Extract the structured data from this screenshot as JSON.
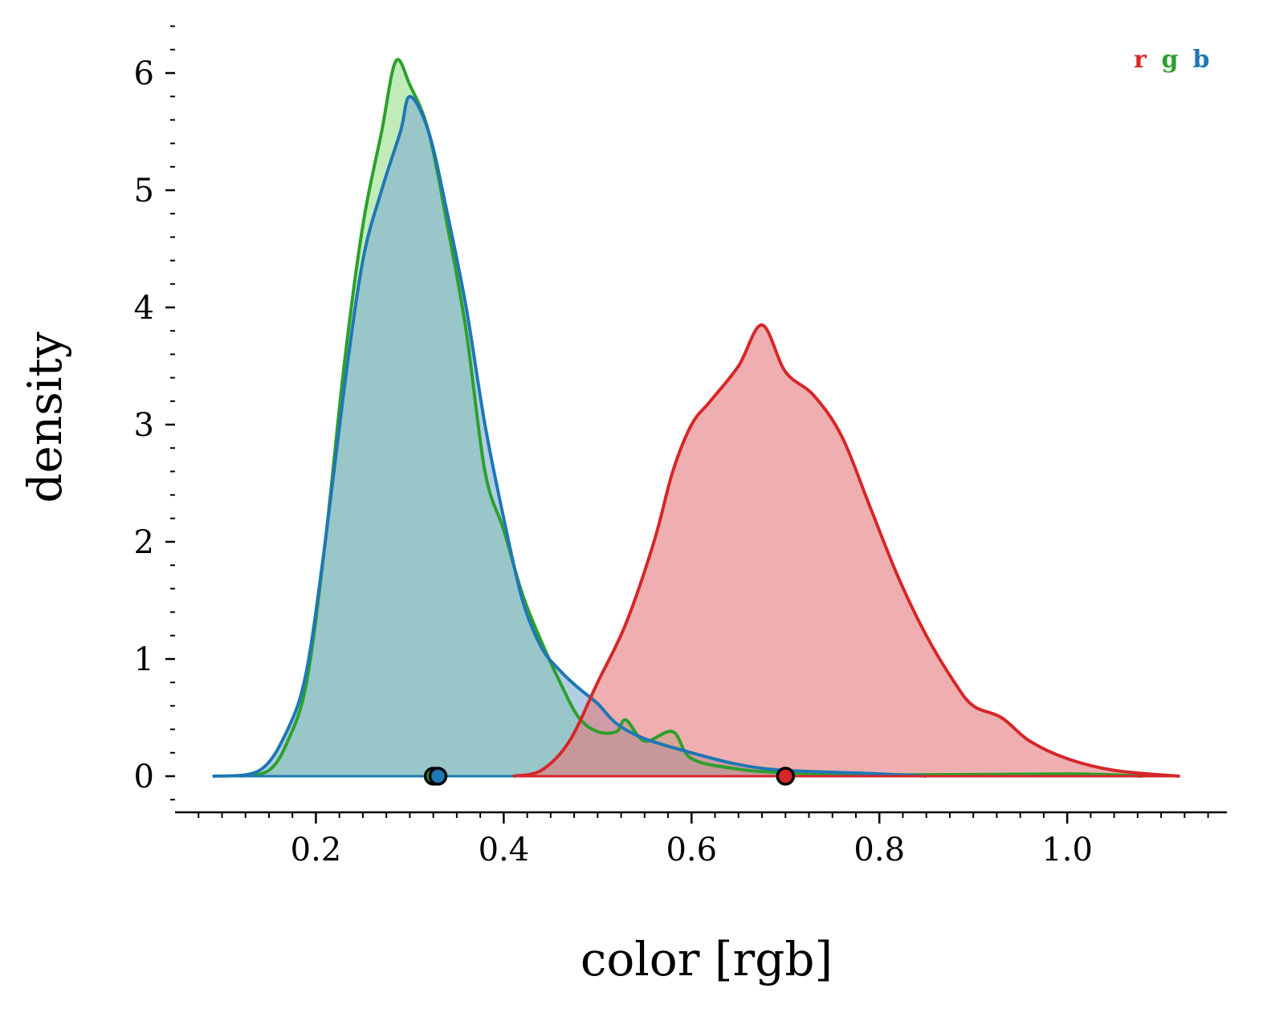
{
  "chart_data": {
    "type": "area",
    "xlabel": "color [rgb]",
    "ylabel": "density",
    "xlim": [
      0.05,
      1.17
    ],
    "ylim": [
      -0.3,
      6.4
    ],
    "x_ticks": [
      0.2,
      0.4,
      0.6,
      0.8,
      1.0
    ],
    "x_tick_labels": [
      "0.2",
      "0.4",
      "0.6",
      "0.8",
      "1.0"
    ],
    "y_ticks": [
      0,
      1,
      2,
      3,
      4,
      5,
      6
    ],
    "y_tick_labels": [
      "0",
      "1",
      "2",
      "3",
      "4",
      "5",
      "6"
    ],
    "x_minor_step": 0.025,
    "y_minor_step": 0.2,
    "grid": false,
    "legend_position": "top-right",
    "colors": {
      "r": "#d62728",
      "g": "#2ca02c",
      "b": "#1f77b4"
    },
    "series": [
      {
        "name": "g",
        "color": "#2ca02c",
        "fill": "#98df8a",
        "marker_x": 0.325,
        "points": [
          [
            0.12,
            0
          ],
          [
            0.15,
            0.05
          ],
          [
            0.17,
            0.3
          ],
          [
            0.19,
            0.8
          ],
          [
            0.21,
            2.0
          ],
          [
            0.23,
            3.5
          ],
          [
            0.25,
            4.7
          ],
          [
            0.27,
            5.5
          ],
          [
            0.285,
            6.1
          ],
          [
            0.3,
            5.9
          ],
          [
            0.32,
            5.5
          ],
          [
            0.34,
            4.7
          ],
          [
            0.36,
            3.8
          ],
          [
            0.38,
            2.6
          ],
          [
            0.4,
            2.1
          ],
          [
            0.42,
            1.55
          ],
          [
            0.44,
            1.15
          ],
          [
            0.46,
            0.8
          ],
          [
            0.48,
            0.5
          ],
          [
            0.5,
            0.38
          ],
          [
            0.52,
            0.38
          ],
          [
            0.53,
            0.48
          ],
          [
            0.55,
            0.3
          ],
          [
            0.58,
            0.38
          ],
          [
            0.6,
            0.15
          ],
          [
            0.65,
            0.06
          ],
          [
            0.7,
            0.03
          ],
          [
            0.8,
            0.01
          ],
          [
            1.0,
            0.02
          ],
          [
            1.08,
            0
          ]
        ]
      },
      {
        "name": "b",
        "color": "#1f77b4",
        "fill": "#7eaed4",
        "marker_x": 0.33,
        "points": [
          [
            0.09,
            0
          ],
          [
            0.14,
            0.05
          ],
          [
            0.17,
            0.4
          ],
          [
            0.19,
            0.9
          ],
          [
            0.21,
            2.0
          ],
          [
            0.23,
            3.3
          ],
          [
            0.25,
            4.4
          ],
          [
            0.27,
            5.0
          ],
          [
            0.29,
            5.5
          ],
          [
            0.3,
            5.8
          ],
          [
            0.32,
            5.5
          ],
          [
            0.34,
            4.8
          ],
          [
            0.36,
            4.0
          ],
          [
            0.38,
            3.0
          ],
          [
            0.4,
            2.2
          ],
          [
            0.42,
            1.5
          ],
          [
            0.44,
            1.1
          ],
          [
            0.46,
            0.9
          ],
          [
            0.48,
            0.75
          ],
          [
            0.5,
            0.62
          ],
          [
            0.52,
            0.45
          ],
          [
            0.55,
            0.32
          ],
          [
            0.6,
            0.2
          ],
          [
            0.65,
            0.1
          ],
          [
            0.7,
            0.05
          ],
          [
            0.8,
            0.02
          ],
          [
            0.85,
            0
          ]
        ]
      },
      {
        "name": "r",
        "color": "#d62728",
        "fill": "#e57a7b",
        "marker_x": 0.7,
        "points": [
          [
            0.41,
            0
          ],
          [
            0.44,
            0.05
          ],
          [
            0.47,
            0.3
          ],
          [
            0.5,
            0.8
          ],
          [
            0.53,
            1.3
          ],
          [
            0.56,
            2.0
          ],
          [
            0.58,
            2.6
          ],
          [
            0.6,
            3.0
          ],
          [
            0.62,
            3.2
          ],
          [
            0.65,
            3.5
          ],
          [
            0.675,
            3.85
          ],
          [
            0.7,
            3.45
          ],
          [
            0.73,
            3.25
          ],
          [
            0.76,
            2.9
          ],
          [
            0.79,
            2.3
          ],
          [
            0.82,
            1.7
          ],
          [
            0.85,
            1.2
          ],
          [
            0.88,
            0.8
          ],
          [
            0.9,
            0.6
          ],
          [
            0.93,
            0.5
          ],
          [
            0.96,
            0.3
          ],
          [
            1.0,
            0.15
          ],
          [
            1.05,
            0.05
          ],
          [
            1.12,
            0
          ]
        ]
      }
    ]
  }
}
